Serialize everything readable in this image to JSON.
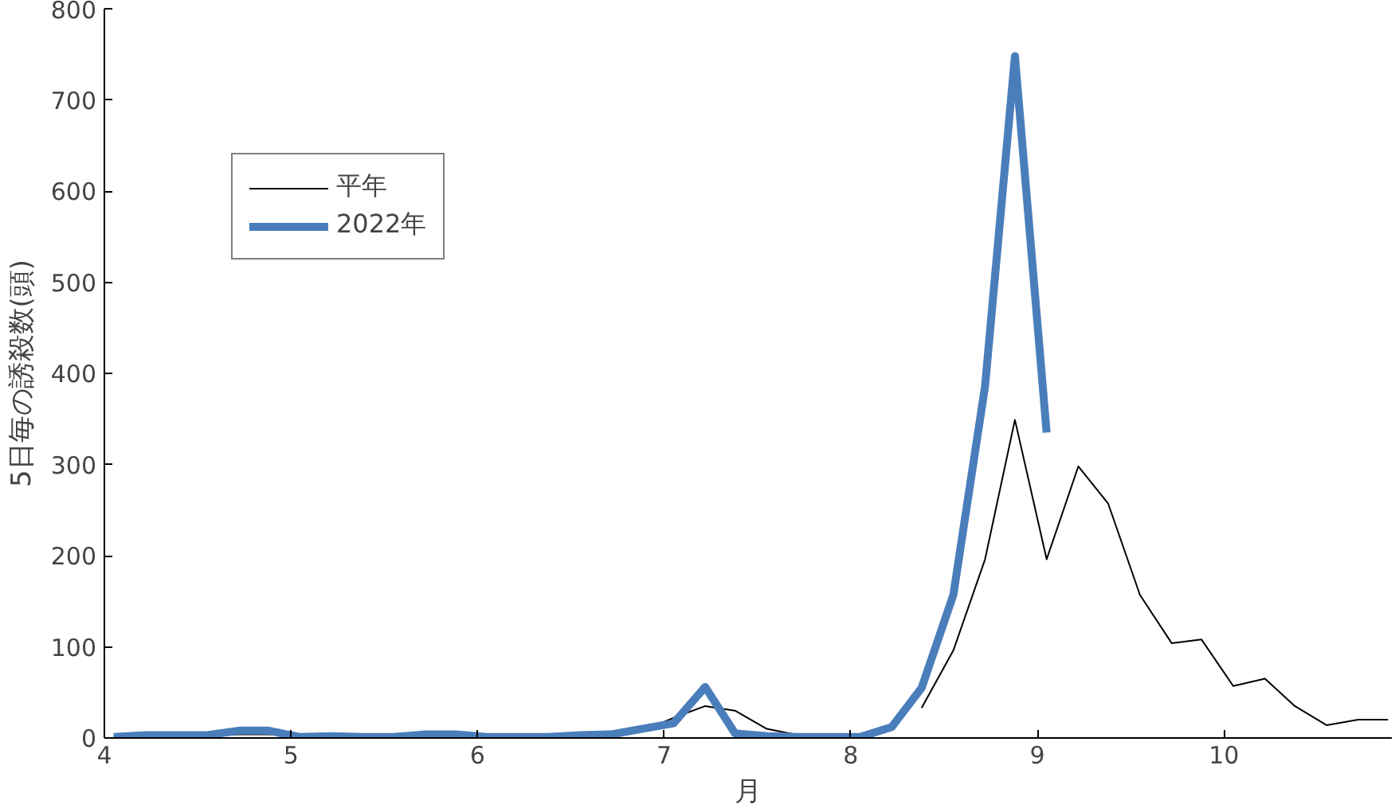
{
  "chart_data": {
    "type": "line",
    "xlabel": "月",
    "ylabel": "5日毎の誘殺数(頭)",
    "xlim": [
      4,
      10.9
    ],
    "xticks": [
      4,
      5,
      6,
      7,
      8,
      9,
      10
    ],
    "ylim": [
      0,
      800
    ],
    "yticks": [
      0,
      100,
      200,
      300,
      400,
      500,
      600,
      700,
      800
    ],
    "grid": false,
    "legend": "top left",
    "marker": "none",
    "x": [
      4.05,
      4.22,
      4.38,
      4.55,
      4.72,
      4.88,
      5.05,
      5.22,
      5.38,
      5.55,
      5.72,
      5.88,
      6.05,
      6.22,
      6.38,
      6.55,
      6.72,
      6.88,
      7.05,
      7.22,
      7.38,
      7.55,
      7.72,
      7.88,
      8.05,
      8.22,
      8.38,
      8.55,
      8.72,
      8.88,
      9.05,
      9.22,
      9.38,
      9.55,
      9.72,
      9.88,
      10.05,
      10.22,
      10.38,
      10.55,
      10.72,
      10.88
    ],
    "series": [
      {
        "name": "平年",
        "color": "#000000",
        "values": [
          1,
          2,
          2,
          2,
          4,
          4,
          2,
          2,
          2,
          2,
          3,
          3,
          2,
          2,
          2,
          3,
          4,
          8,
          22,
          35,
          30,
          10,
          3,
          2,
          1,
          null,
          33,
          96,
          196,
          349,
          196,
          298,
          257,
          157,
          104,
          108,
          57,
          65,
          35,
          14,
          20,
          20
        ]
      },
      {
        "name": "2022年",
        "color": "#4a7ebb",
        "values": [
          1,
          3,
          3,
          3,
          8,
          8,
          1,
          2,
          1,
          1,
          4,
          4,
          1,
          1,
          1,
          3,
          4,
          10,
          16,
          56,
          5,
          2,
          1,
          1,
          1,
          12,
          55,
          157,
          386,
          748,
          335,
          null,
          null,
          null,
          null,
          null,
          null,
          null,
          null,
          null,
          null,
          null
        ]
      }
    ]
  }
}
